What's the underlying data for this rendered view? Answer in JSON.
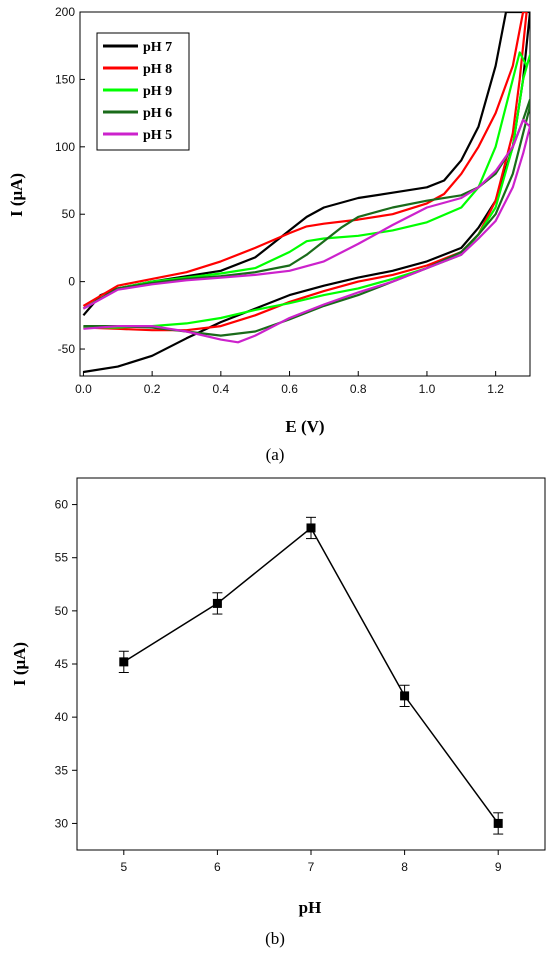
{
  "chart_data": [
    {
      "type": "line",
      "xlabel": "E (V)",
      "ylabel": "I (μA)",
      "caption": "(a)",
      "xlim": [
        -0.01,
        1.3
      ],
      "ylim": [
        -70,
        200
      ],
      "xticks": [
        "0.0",
        "0.2",
        "0.4",
        "0.6",
        "0.8",
        "1.0",
        "1.2"
      ],
      "yticks": [
        "-50",
        "0",
        "50",
        "100",
        "150",
        "200"
      ],
      "legend_position": "top-left",
      "series": [
        {
          "name": "pH 7",
          "color": "#000000",
          "forward": [
            [
              0,
              -25
            ],
            [
              0.05,
              -10
            ],
            [
              0.1,
              -5
            ],
            [
              0.2,
              0
            ],
            [
              0.3,
              4
            ],
            [
              0.4,
              8
            ],
            [
              0.5,
              18
            ],
            [
              0.55,
              28
            ],
            [
              0.6,
              38
            ],
            [
              0.65,
              48
            ],
            [
              0.7,
              55
            ],
            [
              0.8,
              62
            ],
            [
              0.9,
              66
            ],
            [
              1.0,
              70
            ],
            [
              1.05,
              75
            ],
            [
              1.1,
              90
            ],
            [
              1.15,
              115
            ],
            [
              1.2,
              160
            ],
            [
              1.23,
              200
            ]
          ],
          "reverse": [
            [
              1.3,
              200
            ],
            [
              1.28,
              150
            ],
            [
              1.25,
              100
            ],
            [
              1.2,
              60
            ],
            [
              1.15,
              40
            ],
            [
              1.1,
              25
            ],
            [
              1.0,
              15
            ],
            [
              0.9,
              8
            ],
            [
              0.8,
              3
            ],
            [
              0.7,
              -3
            ],
            [
              0.6,
              -10
            ],
            [
              0.5,
              -20
            ],
            [
              0.4,
              -30
            ],
            [
              0.3,
              -42
            ],
            [
              0.2,
              -55
            ],
            [
              0.1,
              -63
            ],
            [
              0,
              -67
            ]
          ]
        },
        {
          "name": "pH 8",
          "color": "#ff0000",
          "forward": [
            [
              0,
              -18
            ],
            [
              0.1,
              -3
            ],
            [
              0.2,
              2
            ],
            [
              0.3,
              7
            ],
            [
              0.4,
              15
            ],
            [
              0.5,
              25
            ],
            [
              0.6,
              36
            ],
            [
              0.65,
              41
            ],
            [
              0.7,
              43
            ],
            [
              0.8,
              46
            ],
            [
              0.9,
              50
            ],
            [
              1.0,
              58
            ],
            [
              1.05,
              65
            ],
            [
              1.1,
              80
            ],
            [
              1.15,
              100
            ],
            [
              1.2,
              125
            ],
            [
              1.25,
              160
            ],
            [
              1.28,
              200
            ]
          ],
          "reverse": [
            [
              1.29,
              200
            ],
            [
              1.27,
              150
            ],
            [
              1.25,
              110
            ],
            [
              1.2,
              60
            ],
            [
              1.15,
              35
            ],
            [
              1.1,
              22
            ],
            [
              1.0,
              12
            ],
            [
              0.9,
              5
            ],
            [
              0.8,
              0
            ],
            [
              0.7,
              -7
            ],
            [
              0.6,
              -15
            ],
            [
              0.5,
              -25
            ],
            [
              0.4,
              -33
            ],
            [
              0.3,
              -36
            ],
            [
              0.2,
              -36
            ],
            [
              0.1,
              -35
            ],
            [
              0,
              -34
            ]
          ]
        },
        {
          "name": "pH 9",
          "color": "#00ff00",
          "forward": [
            [
              0,
              -20
            ],
            [
              0.1,
              -5
            ],
            [
              0.2,
              0
            ],
            [
              0.3,
              3
            ],
            [
              0.4,
              6
            ],
            [
              0.5,
              10
            ],
            [
              0.6,
              22
            ],
            [
              0.65,
              30
            ],
            [
              0.7,
              32
            ],
            [
              0.8,
              34
            ],
            [
              0.9,
              38
            ],
            [
              1.0,
              44
            ],
            [
              1.1,
              55
            ],
            [
              1.15,
              70
            ],
            [
              1.2,
              100
            ],
            [
              1.25,
              150
            ],
            [
              1.27,
              170
            ],
            [
              1.29,
              160
            ]
          ],
          "reverse": [
            [
              1.3,
              168
            ],
            [
              1.28,
              150
            ],
            [
              1.25,
              100
            ],
            [
              1.2,
              55
            ],
            [
              1.15,
              35
            ],
            [
              1.1,
              20
            ],
            [
              1.0,
              10
            ],
            [
              0.9,
              2
            ],
            [
              0.8,
              -5
            ],
            [
              0.7,
              -10
            ],
            [
              0.6,
              -16
            ],
            [
              0.5,
              -21
            ],
            [
              0.4,
              -27
            ],
            [
              0.3,
              -31
            ],
            [
              0.2,
              -33
            ],
            [
              0.1,
              -34
            ],
            [
              0,
              -34
            ]
          ]
        },
        {
          "name": "pH 6",
          "color": "#1a6b1a",
          "forward": [
            [
              0,
              -20
            ],
            [
              0.1,
              -5
            ],
            [
              0.2,
              -1
            ],
            [
              0.3,
              2
            ],
            [
              0.4,
              4
            ],
            [
              0.5,
              7
            ],
            [
              0.6,
              12
            ],
            [
              0.65,
              20
            ],
            [
              0.7,
              30
            ],
            [
              0.75,
              40
            ],
            [
              0.8,
              48
            ],
            [
              0.9,
              55
            ],
            [
              1.0,
              60
            ],
            [
              1.1,
              64
            ],
            [
              1.15,
              70
            ],
            [
              1.2,
              80
            ],
            [
              1.25,
              100
            ],
            [
              1.28,
              120
            ],
            [
              1.3,
              135
            ]
          ],
          "reverse": [
            [
              1.3,
              130
            ],
            [
              1.28,
              110
            ],
            [
              1.25,
              80
            ],
            [
              1.2,
              50
            ],
            [
              1.15,
              35
            ],
            [
              1.1,
              22
            ],
            [
              1.0,
              10
            ],
            [
              0.9,
              0
            ],
            [
              0.8,
              -10
            ],
            [
              0.7,
              -18
            ],
            [
              0.6,
              -28
            ],
            [
              0.5,
              -37
            ],
            [
              0.4,
              -40
            ],
            [
              0.3,
              -37
            ],
            [
              0.2,
              -34
            ],
            [
              0.1,
              -33
            ],
            [
              0,
              -33
            ]
          ]
        },
        {
          "name": "pH 5",
          "color": "#cc22cc",
          "forward": [
            [
              0,
              -20
            ],
            [
              0.1,
              -6
            ],
            [
              0.2,
              -2
            ],
            [
              0.3,
              1
            ],
            [
              0.4,
              3
            ],
            [
              0.5,
              5
            ],
            [
              0.6,
              8
            ],
            [
              0.7,
              15
            ],
            [
              0.8,
              28
            ],
            [
              0.9,
              42
            ],
            [
              1.0,
              55
            ],
            [
              1.1,
              62
            ],
            [
              1.15,
              70
            ],
            [
              1.2,
              82
            ],
            [
              1.25,
              100
            ],
            [
              1.28,
              120
            ],
            [
              1.3,
              115
            ]
          ],
          "reverse": [
            [
              1.3,
              115
            ],
            [
              1.28,
              95
            ],
            [
              1.25,
              70
            ],
            [
              1.2,
              45
            ],
            [
              1.15,
              32
            ],
            [
              1.1,
              20
            ],
            [
              1.0,
              10
            ],
            [
              0.9,
              0
            ],
            [
              0.8,
              -8
            ],
            [
              0.7,
              -17
            ],
            [
              0.6,
              -27
            ],
            [
              0.5,
              -40
            ],
            [
              0.45,
              -45
            ],
            [
              0.4,
              -43
            ],
            [
              0.3,
              -37
            ],
            [
              0.2,
              -33
            ],
            [
              0.1,
              -33
            ],
            [
              0,
              -35
            ]
          ]
        }
      ]
    },
    {
      "type": "scatter",
      "xlabel": "pH",
      "ylabel": "I (μA)",
      "caption": "(b)",
      "xlim": [
        4.5,
        9.5
      ],
      "ylim": [
        27.5,
        62.5
      ],
      "xticks": [
        "5",
        "6",
        "7",
        "8",
        "9"
      ],
      "yticks": [
        "30",
        "35",
        "40",
        "45",
        "50",
        "55",
        "60"
      ],
      "x": [
        5,
        6,
        7,
        8,
        9
      ],
      "y": [
        45.2,
        50.7,
        57.8,
        42.0,
        30.0
      ],
      "error": [
        1.0,
        1.0,
        1.0,
        1.0,
        1.0
      ]
    }
  ]
}
